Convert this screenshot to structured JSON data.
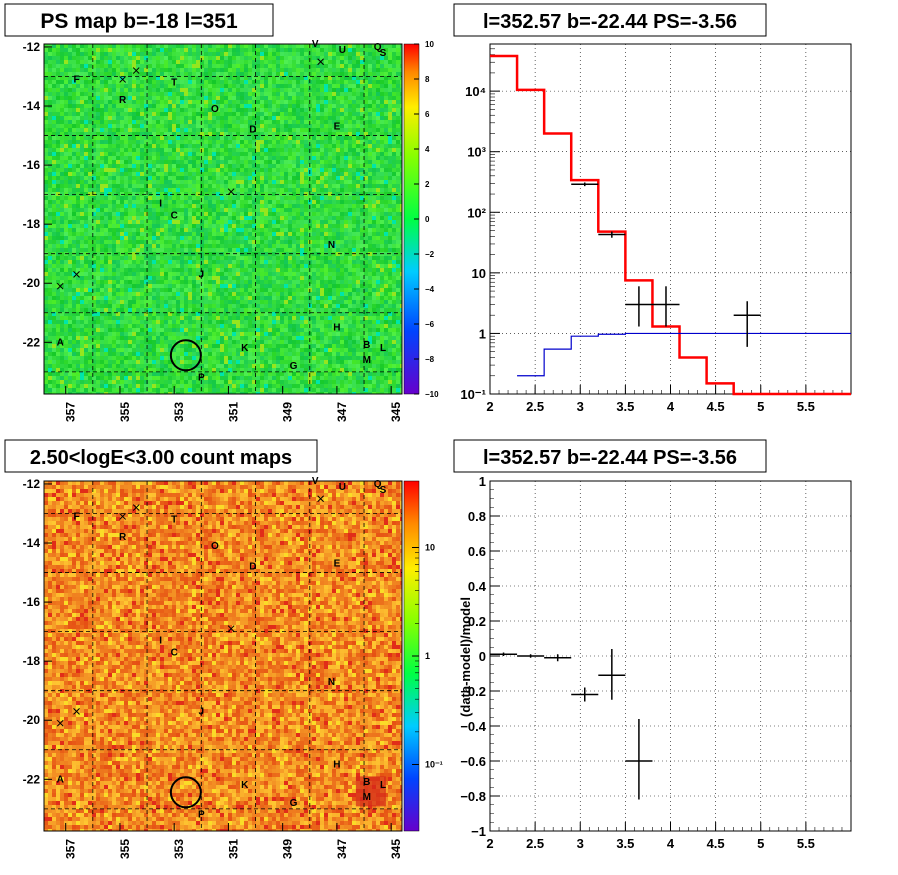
{
  "colors": {
    "map_top_base": "#22dd33",
    "map_bottom_base": "#f08030",
    "model_line": "#ff0000",
    "background_line": "#0000cc",
    "data_points": "#000000",
    "grid": "#000000"
  },
  "maps": [
    {
      "id": "ps-map",
      "title": "PS map b=-18 l=351",
      "colorscale_ticks": [
        "10",
        "8",
        "6",
        "4",
        "2",
        "0",
        "−2",
        "−4",
        "−6",
        "−8",
        "−10"
      ],
      "colorscale_style": "linear",
      "x_ticks": [
        "357",
        "355",
        "353",
        "351",
        "349",
        "347",
        "345"
      ],
      "y_ticks": [
        "-12",
        "-14",
        "-16",
        "-18",
        "-20",
        "-22"
      ],
      "grid": true
    },
    {
      "id": "count-map",
      "title": "2.50<logE<3.00 count maps",
      "colorscale_ticks": [
        "10",
        "1",
        "10⁻¹"
      ],
      "colorscale_style": "log",
      "x_ticks": [
        "357",
        "355",
        "353",
        "351",
        "349",
        "347",
        "345"
      ],
      "y_ticks": [
        "-12",
        "-14",
        "-16",
        "-18",
        "-20",
        "-22"
      ],
      "grid": true
    }
  ],
  "source_labels": [
    "A",
    "B",
    "C",
    "D",
    "E",
    "F",
    "G",
    "H",
    "I",
    "J",
    "K",
    "L",
    "M",
    "N",
    "O",
    "P",
    "Q",
    "R",
    "S",
    "T",
    "U",
    "V"
  ],
  "map_source_markers": [
    {
      "label": "U",
      "l": 346.8,
      "b": -12.2
    },
    {
      "label": "V",
      "l": 347.8,
      "b": -12.0
    },
    {
      "label": "Q",
      "l": 345.5,
      "b": -12.1
    },
    {
      "label": "S",
      "l": 345.3,
      "b": -12.3
    },
    {
      "label": "F",
      "l": 356.6,
      "b": -13.2
    },
    {
      "label": "T",
      "l": 353.0,
      "b": -13.3
    },
    {
      "label": "R",
      "l": 354.9,
      "b": -13.9
    },
    {
      "label": "O",
      "l": 351.5,
      "b": -14.2
    },
    {
      "label": "D",
      "l": 350.1,
      "b": -14.9
    },
    {
      "label": "E",
      "l": 347.0,
      "b": -14.8
    },
    {
      "label": "I",
      "l": 353.5,
      "b": -17.4
    },
    {
      "label": "C",
      "l": 353.0,
      "b": -17.8
    },
    {
      "label": "N",
      "l": 347.2,
      "b": -18.8
    },
    {
      "label": "J",
      "l": 352.0,
      "b": -19.8
    },
    {
      "label": "H",
      "l": 347.0,
      "b": -21.6
    },
    {
      "label": "A",
      "l": 357.2,
      "b": -22.1
    },
    {
      "label": "K",
      "l": 350.4,
      "b": -22.3
    },
    {
      "label": "B",
      "l": 345.9,
      "b": -22.2
    },
    {
      "label": "L",
      "l": 345.3,
      "b": -22.3
    },
    {
      "label": "M",
      "l": 345.9,
      "b": -22.7
    },
    {
      "label": "G",
      "l": 348.6,
      "b": -22.9
    },
    {
      "label": "P",
      "l": 352.0,
      "b": -23.3
    }
  ],
  "map_cross_markers": [
    {
      "l": 354.9,
      "b": -13.1
    },
    {
      "l": 354.4,
      "b": -12.8
    },
    {
      "l": 347.6,
      "b": -12.5
    },
    {
      "l": 350.9,
      "b": -16.9
    },
    {
      "l": 357.2,
      "b": -20.1
    },
    {
      "l": 356.6,
      "b": -19.7
    }
  ],
  "selected_source": {
    "l": 352.57,
    "b": -22.44
  },
  "panel_title": "l=352.57 b=-22.44 PS=-3.56",
  "chart_data": [
    {
      "type": "line",
      "title": "l=352.57 b=-22.44 PS=-3.56",
      "xlabel": "",
      "ylabel": "",
      "xlim": [
        2,
        6.0
      ],
      "ylim": [
        0.1,
        60000
      ],
      "log_y": true,
      "grid": true,
      "x_ticks": [
        "2",
        "2.5",
        "3",
        "3.5",
        "4",
        "4.5",
        "5",
        "5.5"
      ],
      "y_ticks": [
        {
          "value": 10000,
          "label": "10⁴"
        },
        {
          "value": 1000,
          "label": "10³"
        },
        {
          "value": 100,
          "label": "10²"
        },
        {
          "value": 10,
          "label": "10"
        },
        {
          "value": 1,
          "label": "1"
        },
        {
          "value": 0.1,
          "label": "10⁻¹"
        }
      ],
      "series": [
        {
          "style": "step",
          "color": "#ff0000",
          "bin_edges": [
            2.0,
            2.3,
            2.6,
            2.9,
            3.2,
            3.5,
            3.8,
            4.1,
            4.4,
            4.7,
            6.0
          ],
          "values": [
            38000,
            10500,
            2000,
            340,
            48,
            7.5,
            1.3,
            0.4,
            0.15,
            0.1
          ]
        },
        {
          "style": "step",
          "color": "#0000cc",
          "bin_edges": [
            2.3,
            2.6,
            2.9,
            3.2,
            3.5,
            6.0
          ],
          "values": [
            0.2,
            0.55,
            0.9,
            0.97,
            1.0
          ]
        },
        {
          "style": "errorbar",
          "color": "#000000",
          "points": [
            {
              "x": 3.05,
              "y": 290,
              "xerr": 0.15,
              "ylo": 270,
              "yhi": 310
            },
            {
              "x": 3.35,
              "y": 43,
              "xerr": 0.15,
              "ylo": 38,
              "yhi": 48
            },
            {
              "x": 3.65,
              "y": 3,
              "xerr": 0.15,
              "ylo": 1.3,
              "yhi": 6
            },
            {
              "x": 3.95,
              "y": 3,
              "xerr": 0.15,
              "ylo": 1.3,
              "yhi": 6
            },
            {
              "x": 4.85,
              "y": 2,
              "xerr": 0.15,
              "ylo": 0.6,
              "yhi": 3.4
            }
          ]
        }
      ]
    },
    {
      "type": "scatter",
      "title": "l=352.57 b=-22.44 PS=-3.56",
      "xlabel": "",
      "ylabel": "(data-model)/model",
      "xlim": [
        2,
        6.0
      ],
      "ylim": [
        -1,
        1
      ],
      "grid": true,
      "x_ticks": [
        "2",
        "2.5",
        "3",
        "3.5",
        "4",
        "4.5",
        "5",
        "5.5"
      ],
      "y_ticks": [
        "1",
        "0.8",
        "0.6",
        "0.4",
        "0.2",
        "0",
        "−0.2",
        "−0.4",
        "−0.6",
        "−0.8",
        "−1"
      ],
      "series": [
        {
          "style": "errorbar",
          "color": "#000000",
          "points": [
            {
              "x": 2.15,
              "y": 0.01,
              "xerr": 0.15,
              "ylo": 0.0,
              "yhi": 0.02
            },
            {
              "x": 2.45,
              "y": 0.0,
              "xerr": 0.15,
              "ylo": -0.01,
              "yhi": 0.01
            },
            {
              "x": 2.75,
              "y": -0.01,
              "xerr": 0.15,
              "ylo": -0.03,
              "yhi": 0.01
            },
            {
              "x": 3.05,
              "y": -0.22,
              "xerr": 0.15,
              "ylo": -0.26,
              "yhi": -0.18
            },
            {
              "x": 3.35,
              "y": -0.11,
              "xerr": 0.15,
              "ylo": -0.25,
              "yhi": 0.04
            },
            {
              "x": 3.65,
              "y": -0.6,
              "xerr": 0.15,
              "ylo": -0.82,
              "yhi": -0.36
            }
          ]
        }
      ]
    }
  ]
}
